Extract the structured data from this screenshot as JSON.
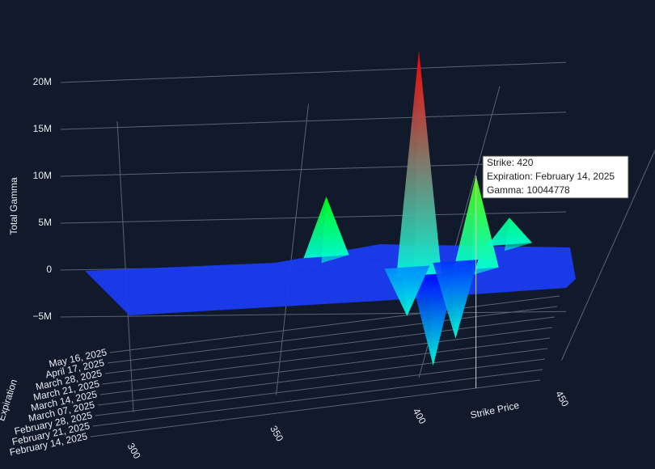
{
  "chart_data": {
    "type": "surface",
    "z_title": "Total Gamma",
    "x_title": "Strike Price",
    "y_title": "Expiration",
    "zticks": [
      {
        "value": 20000000,
        "label": "20M"
      },
      {
        "value": 15000000,
        "label": "15M"
      },
      {
        "value": 10000000,
        "label": "10M"
      },
      {
        "value": 5000000,
        "label": "5M"
      },
      0,
      {
        "value": -5000000,
        "label": "−5M"
      }
    ],
    "xticks": [
      300,
      350,
      400,
      450
    ],
    "expirations": [
      "February 14, 2025",
      "February 21, 2025",
      "February 28, 2025",
      "March 07, 2025",
      "March 14, 2025",
      "March 21, 2025",
      "March 28, 2025",
      "April 17, 2025",
      "May 16, 2025"
    ],
    "points": {
      "strike": [
        400,
        420,
        365,
        405,
        412,
        430,
        395
      ],
      "expiration": [
        "February 14, 2025",
        "February 14, 2025",
        "March 07, 2025",
        "February 14, 2025",
        "February 21, 2025",
        "February 28, 2025",
        "February 21, 2025"
      ],
      "gamma": [
        24000000,
        10044778,
        6500000,
        -9500000,
        -8000000,
        3000000,
        -5000000
      ]
    },
    "hover": [
      "Strike: 420",
      "Expiration: February 14, 2025",
      "Gamma: 10044778"
    ]
  }
}
